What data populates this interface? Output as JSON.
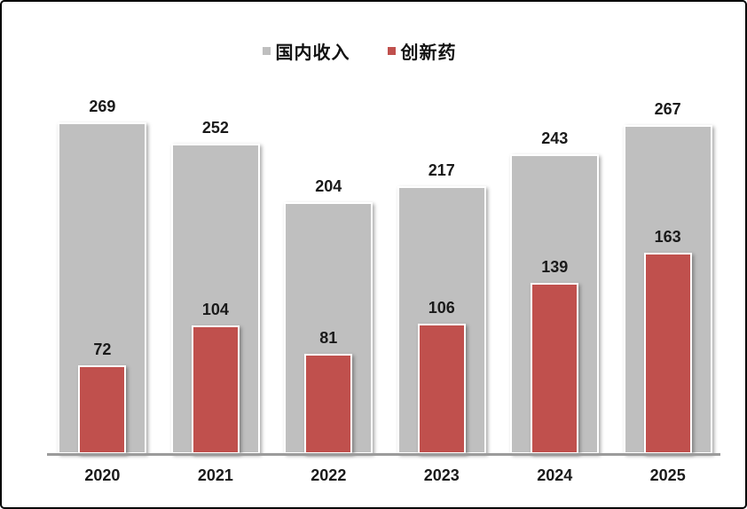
{
  "chart_data": {
    "type": "bar",
    "title": "",
    "xlabel": "",
    "ylabel": "",
    "categories": [
      "2020",
      "2021",
      "2022",
      "2023",
      "2024",
      "2025"
    ],
    "series": [
      {
        "name": "国内收入",
        "color": "#BFBFBF",
        "values": [
          269,
          252,
          204,
          217,
          243,
          267
        ]
      },
      {
        "name": "创新药",
        "color": "#C0504D",
        "values": [
          72,
          104,
          81,
          106,
          139,
          163
        ]
      }
    ],
    "ylim": [
      0,
      290
    ],
    "grid": false,
    "y_axis_visible": false,
    "legend_position": "top-center",
    "bar_style": "overlapped, narrow red bar centered on wide gray bar, white outlines with drop shadow",
    "value_labels": "above each bar",
    "axis_line_color": "#9B9B9B",
    "label_color": "#1A1A1A"
  }
}
